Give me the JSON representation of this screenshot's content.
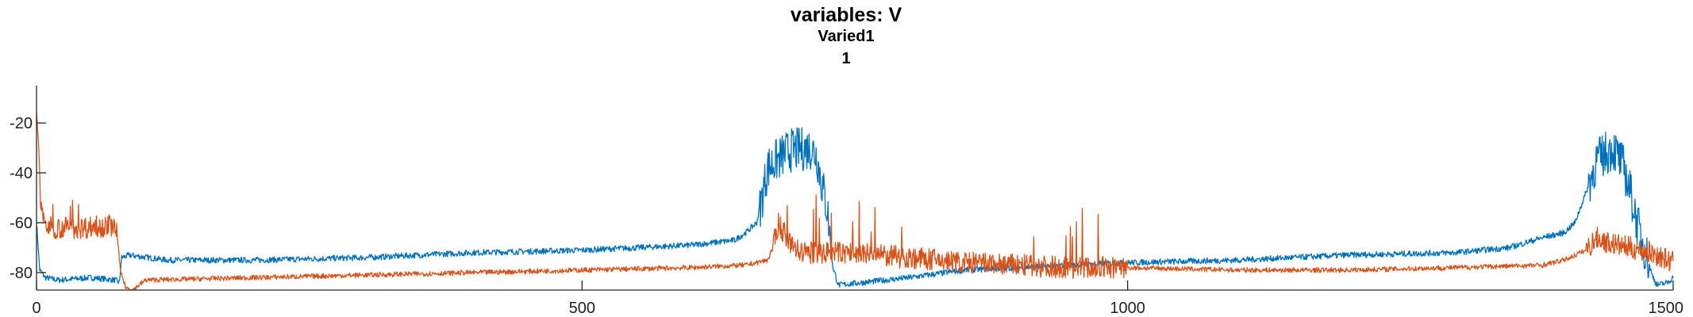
{
  "chart_data": {
    "type": "line",
    "title": "variables: V",
    "subtitle_lines": [
      "Varied1",
      "1"
    ],
    "xlabel": "",
    "ylabel": "",
    "xlim": [
      0,
      1500
    ],
    "ylim": [
      -87,
      -5
    ],
    "x_ticks": [
      0,
      500,
      1000,
      1500
    ],
    "y_ticks": [
      -20,
      -40,
      -60,
      -80
    ],
    "grid": false,
    "legend": "none",
    "series": [
      {
        "color": "#0072BD",
        "noise": 1.2,
        "points": [
          [
            0,
            -60
          ],
          [
            3,
            -79
          ],
          [
            8,
            -82
          ],
          [
            20,
            -83
          ],
          [
            50,
            -82
          ],
          [
            72,
            -83
          ],
          [
            76,
            -84
          ],
          [
            78,
            -74
          ],
          [
            85,
            -73
          ],
          [
            120,
            -75
          ],
          [
            200,
            -75
          ],
          [
            300,
            -74
          ],
          [
            400,
            -72
          ],
          [
            500,
            -71
          ],
          [
            550,
            -70
          ],
          [
            600,
            -69
          ],
          [
            640,
            -67
          ],
          [
            650,
            -64
          ],
          [
            660,
            -60
          ],
          [
            665,
            -50
          ],
          [
            670,
            -38
          ],
          [
            690,
            -31
          ],
          [
            710,
            -30
          ],
          [
            715,
            -33
          ],
          [
            720,
            -45
          ],
          [
            725,
            -55
          ],
          [
            728,
            -70
          ],
          [
            730,
            -78
          ],
          [
            735,
            -85
          ],
          [
            800,
            -82
          ],
          [
            850,
            -79
          ],
          [
            900,
            -78
          ],
          [
            950,
            -77
          ],
          [
            1000,
            -76
          ],
          [
            1100,
            -75
          ],
          [
            1200,
            -73
          ],
          [
            1300,
            -72
          ],
          [
            1350,
            -70
          ],
          [
            1380,
            -66
          ],
          [
            1400,
            -64
          ],
          [
            1410,
            -60
          ],
          [
            1420,
            -48
          ],
          [
            1430,
            -35
          ],
          [
            1445,
            -30
          ],
          [
            1455,
            -38
          ],
          [
            1462,
            -50
          ],
          [
            1468,
            -62
          ],
          [
            1475,
            -72
          ],
          [
            1480,
            -80
          ],
          [
            1485,
            -85
          ],
          [
            1495,
            -84
          ],
          [
            1500,
            -82
          ]
        ]
      },
      {
        "color": "#D95319",
        "noise": 1.0,
        "points": [
          [
            0,
            -15
          ],
          [
            2,
            -30
          ],
          [
            4,
            -55
          ],
          [
            10,
            -62
          ],
          [
            40,
            -62
          ],
          [
            70,
            -61
          ],
          [
            74,
            -65
          ],
          [
            77,
            -80
          ],
          [
            82,
            -86
          ],
          [
            88,
            -87
          ],
          [
            100,
            -83
          ],
          [
            200,
            -82
          ],
          [
            300,
            -81
          ],
          [
            400,
            -80
          ],
          [
            500,
            -79
          ],
          [
            600,
            -78
          ],
          [
            650,
            -77
          ],
          [
            670,
            -75
          ],
          [
            675,
            -70
          ],
          [
            680,
            -60
          ],
          [
            690,
            -68
          ],
          [
            700,
            -72
          ],
          [
            740,
            -72
          ],
          [
            800,
            -74
          ],
          [
            850,
            -76
          ],
          [
            900,
            -77
          ],
          [
            950,
            -78
          ],
          [
            1000,
            -78
          ],
          [
            1100,
            -79
          ],
          [
            1200,
            -79
          ],
          [
            1300,
            -78
          ],
          [
            1380,
            -77
          ],
          [
            1400,
            -75
          ],
          [
            1420,
            -71
          ],
          [
            1430,
            -66
          ],
          [
            1440,
            -68
          ],
          [
            1460,
            -70
          ],
          [
            1480,
            -72
          ],
          [
            1500,
            -76
          ]
        ]
      }
    ]
  }
}
